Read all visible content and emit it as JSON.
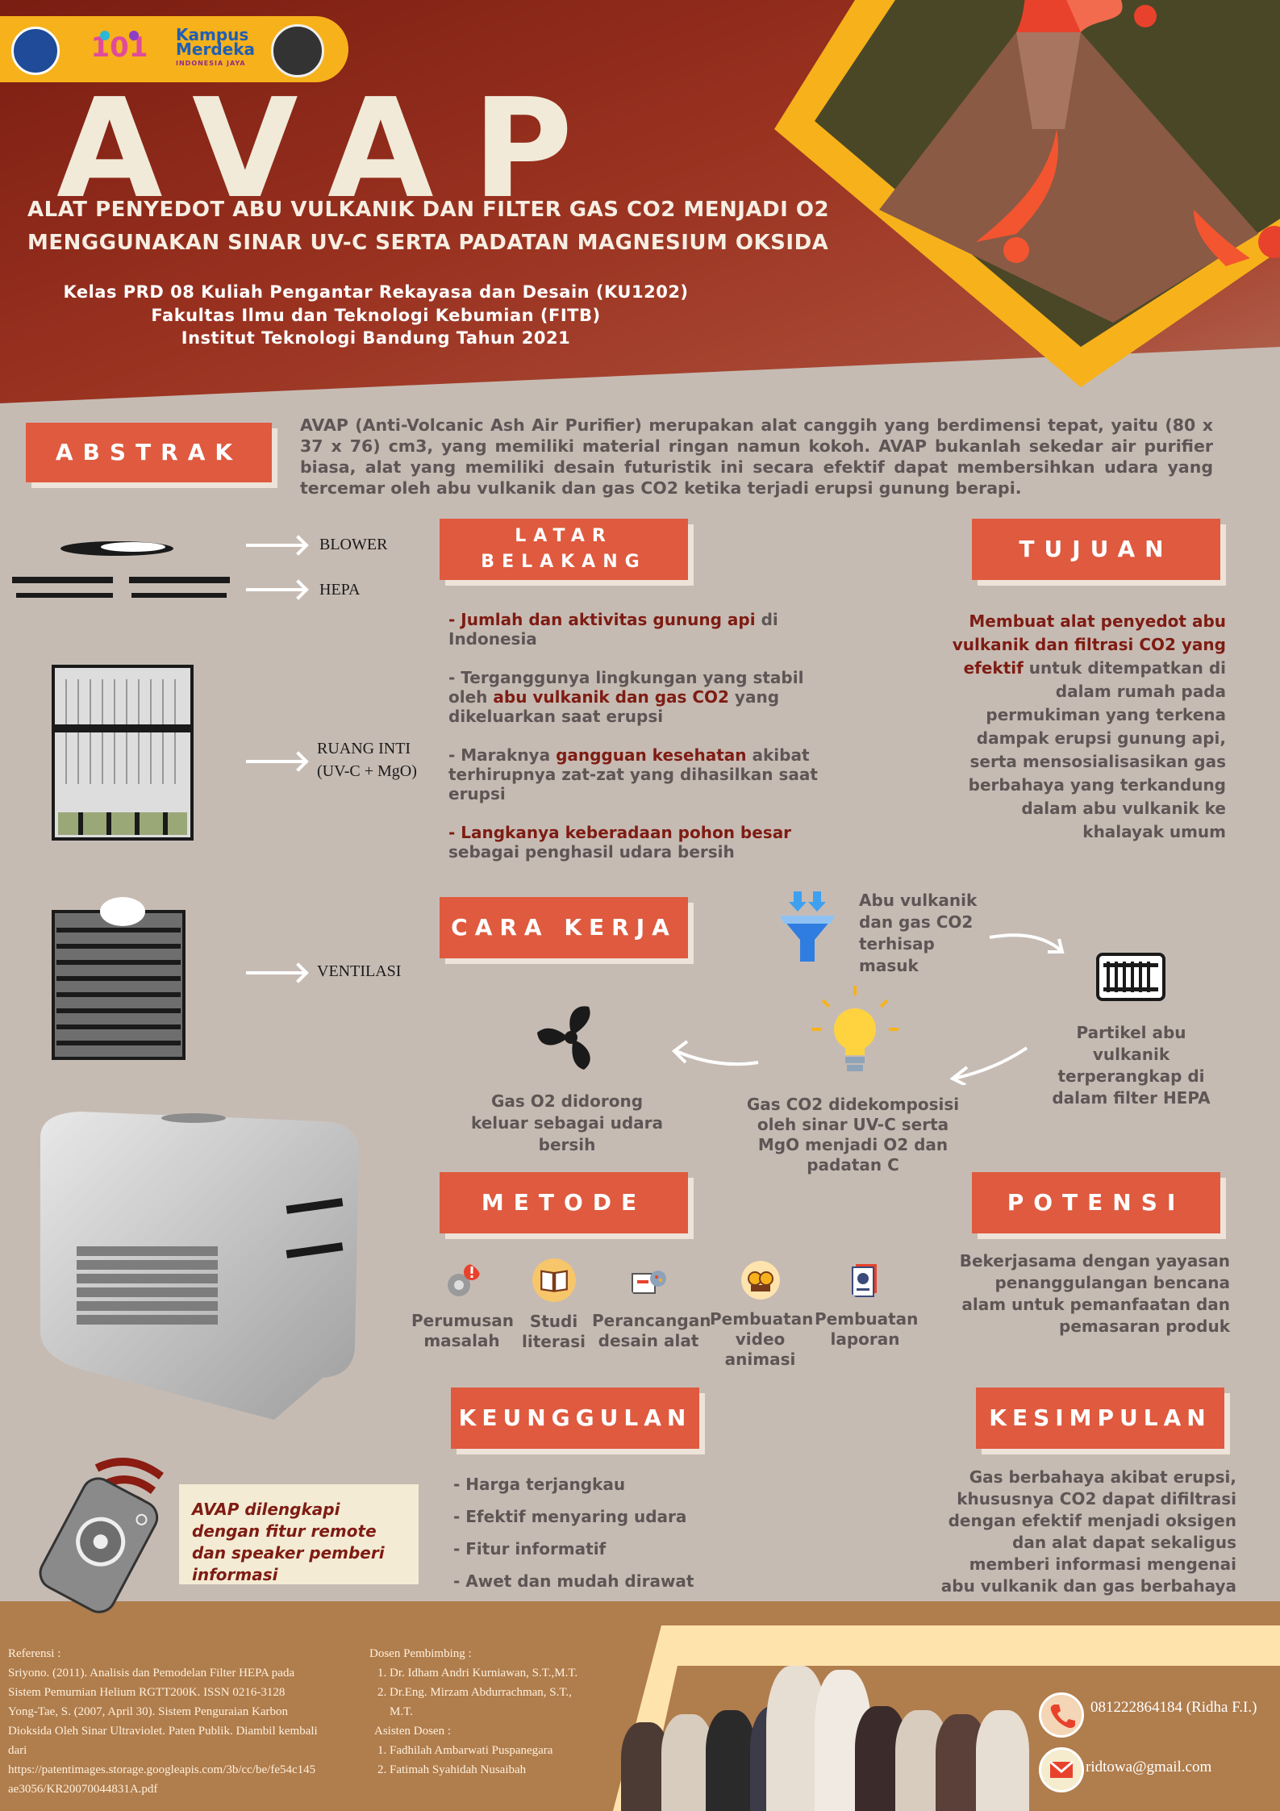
{
  "header": {
    "title": "AVAP",
    "subtitle_line1": "ALAT PENYEDOT ABU VULKANIK DAN FILTER GAS CO2 MENJADI O2",
    "subtitle_line2": "MENGGUNAKAN SINAR UV-C SERTA PADATAN MAGNESIUM OKSIDA",
    "class_line1": "Kelas PRD 08 Kuliah Pengantar Rekayasa dan Desain (KU1202)",
    "class_line2": "Fakultas Ilmu dan Teknologi Kebumian (FITB)",
    "class_line3": "Institut Teknologi Bandung Tahun 2021",
    "logo_kampus_merdeka_line1": "Kampus",
    "logo_kampus_merdeka_line2": "Merdeka",
    "logo_kampus_merdeka_line3": "INDONESIA JAYA"
  },
  "abstrak": {
    "heading": "ABSTRAK",
    "text": "AVAP (Anti-Volcanic Ash Air Purifier) merupakan alat canggih yang berdimensi tepat, yaitu (80 x 37 x 76) cm3, yang memiliki material ringan namun kokoh. AVAP bukanlah sekedar air purifier biasa, alat yang memiliki desain futuristik ini secara efektif dapat membersihkan udara yang tercemar oleh abu vulkanik dan gas CO2 ketika terjadi erupsi gunung berapi."
  },
  "parts": {
    "blower": "BLOWER",
    "hepa": "HEPA",
    "ruang_inti_line1": "RUANG INTI",
    "ruang_inti_line2": "(UV-C + MgO)",
    "ventilasi": "VENTILASI"
  },
  "latar_belakang": {
    "heading_line1": "LATAR",
    "heading_line2": "BELAKANG",
    "item1_accent": "- Jumlah dan aktivitas gunung api",
    "item1_rest": " di Indonesia",
    "item2_start": "- Terganggunya lingkungan yang stabil oleh ",
    "item2_accent": "abu vulkanik dan gas CO2",
    "item2_rest": " yang dikeluarkan saat erupsi",
    "item3_start": "- Maraknya ",
    "item3_accent": "gangguan kesehatan",
    "item3_rest": " akibat terhirupnya zat-zat yang dihasilkan saat erupsi",
    "item4_accent": "- Langkanya keberadaan pohon besar",
    "item4_rest": " sebagai penghasil udara bersih"
  },
  "tujuan": {
    "heading": "TUJUAN",
    "accent": "Membuat alat penyedot abu vulkanik dan filtrasi CO2 yang efektif",
    "rest": " untuk ditempatkan di dalam rumah pada permukiman yang terkena dampak erupsi gunung api, serta mensosialisasikan gas berbahaya yang terkandung dalam abu vulkanik ke khalayak umum"
  },
  "cara_kerja": {
    "heading": "CARA KERJA",
    "step1": "Abu vulkanik dan gas CO2 terhisap masuk",
    "step2": "Partikel abu vulkanik terperangkap di dalam filter HEPA",
    "step3": "Gas CO2 didekomposisi oleh sinar UV-C serta MgO menjadi O2 dan padatan C",
    "step4": "Gas O2 didorong keluar sebagai udara bersih"
  },
  "metode": {
    "heading": "METODE",
    "items": [
      {
        "label": "Perumusan masalah",
        "icon": "gear-alert-icon"
      },
      {
        "label": "Studi literasi",
        "icon": "book-icon"
      },
      {
        "label": "Perancangan desain alat",
        "icon": "design-tools-icon"
      },
      {
        "label": "Pembuatan video animasi",
        "icon": "film-reel-icon"
      },
      {
        "label": "Pembuatan laporan",
        "icon": "report-icon"
      }
    ]
  },
  "potensi": {
    "heading": "POTENSI",
    "text": "Bekerjasama dengan yayasan penanggulangan bencana alam untuk pemanfaatan dan pemasaran produk"
  },
  "keunggulan": {
    "heading": "KEUNGGULAN",
    "items": [
      "- Harga terjangkau",
      "- Efektif menyaring udara",
      "- Fitur informatif",
      "- Awet dan mudah dirawat"
    ]
  },
  "kesimpulan": {
    "heading": "KESIMPULAN",
    "text": "Gas berbahaya akibat erupsi, khususnya CO2 dapat difiltrasi dengan efektif menjadi oksigen dan alat dapat sekaligus memberi informasi mengenai abu vulkanik dan gas berbahaya"
  },
  "remote_note": "AVAP dilengkapi dengan fitur remote dan speaker pemberi informasi",
  "footer": {
    "referensi_title": "Referensi :",
    "referensi_lines": [
      "Sriyono. (2011). Analisis dan Pemodelan Filter HEPA pada",
      "Sistem Pemurnian Helium RGTT200K. ISSN 0216-3128",
      "Yong-Tae, S. (2007, April 30). Sistem Penguraian Karbon",
      "Dioksida Oleh Sinar Ultraviolet. Paten Publik. Diambil kembali",
      "dari",
      "https://patentimages.storage.googleapis.com/3b/cc/be/fe54c145",
      "ae3056/KR20070044831A.pdf"
    ],
    "dosen_title": "Dosen Pembimbing :",
    "dosen": [
      "1. Dr. Idham Andri Kurniawan, S.T.,M.T.",
      "2. Dr.Eng. Mirzam Abdurrachman, S.T.,",
      "    M.T."
    ],
    "asisten_title": "Asisten Dosen :",
    "asisten": [
      "1. Fadhilah Ambarwati Puspanegara",
      "2. Fatimah Syahidah Nusaibah"
    ],
    "phone": "081222864184 (Ridha F.I.)",
    "email": "ridtowa@gmail.com"
  },
  "colors": {
    "accent": "#df5a3f",
    "dark_red": "#7e1c13",
    "yellow": "#f7b11b",
    "text_gray": "#5e5555"
  }
}
